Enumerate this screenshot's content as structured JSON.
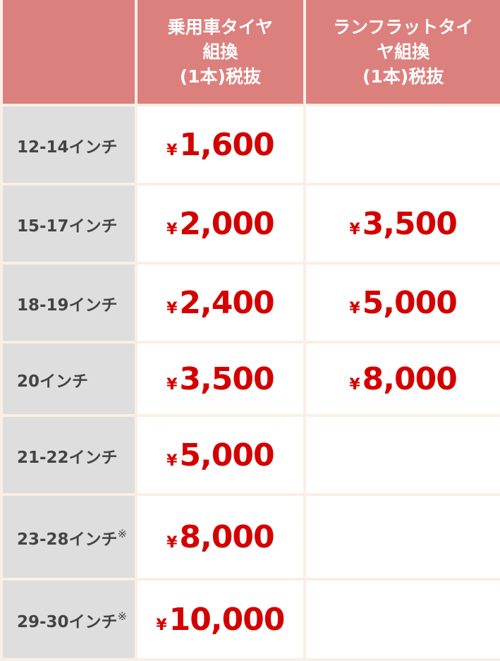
{
  "header": {
    "corner": "",
    "col1": [
      "乗用車タイヤ",
      "組換",
      "(1本)税抜"
    ],
    "col2": [
      "ランフラットタイ",
      "ヤ組換",
      "(1本)税抜"
    ]
  },
  "currency": "¥",
  "rows": [
    {
      "label": "12-14インチ",
      "note": "",
      "standard": "1,600",
      "runflat": ""
    },
    {
      "label": "15-17インチ",
      "note": "",
      "standard": "2,000",
      "runflat": "3,500"
    },
    {
      "label": "18-19インチ",
      "note": "",
      "standard": "2,400",
      "runflat": "5,000"
    },
    {
      "label": "20インチ",
      "note": "",
      "standard": "3,500",
      "runflat": "8,000"
    },
    {
      "label": "21-22インチ",
      "note": "",
      "standard": "5,000",
      "runflat": ""
    },
    {
      "label": "23-28インチ",
      "note": "※",
      "standard": "8,000",
      "runflat": ""
    },
    {
      "label": "29-30インチ",
      "note": "※",
      "standard": "10,000",
      "runflat": ""
    }
  ],
  "colors": {
    "header": "#dc807e",
    "label_bg": "#dedede",
    "price": "#d40000",
    "border": "#faefe4"
  }
}
